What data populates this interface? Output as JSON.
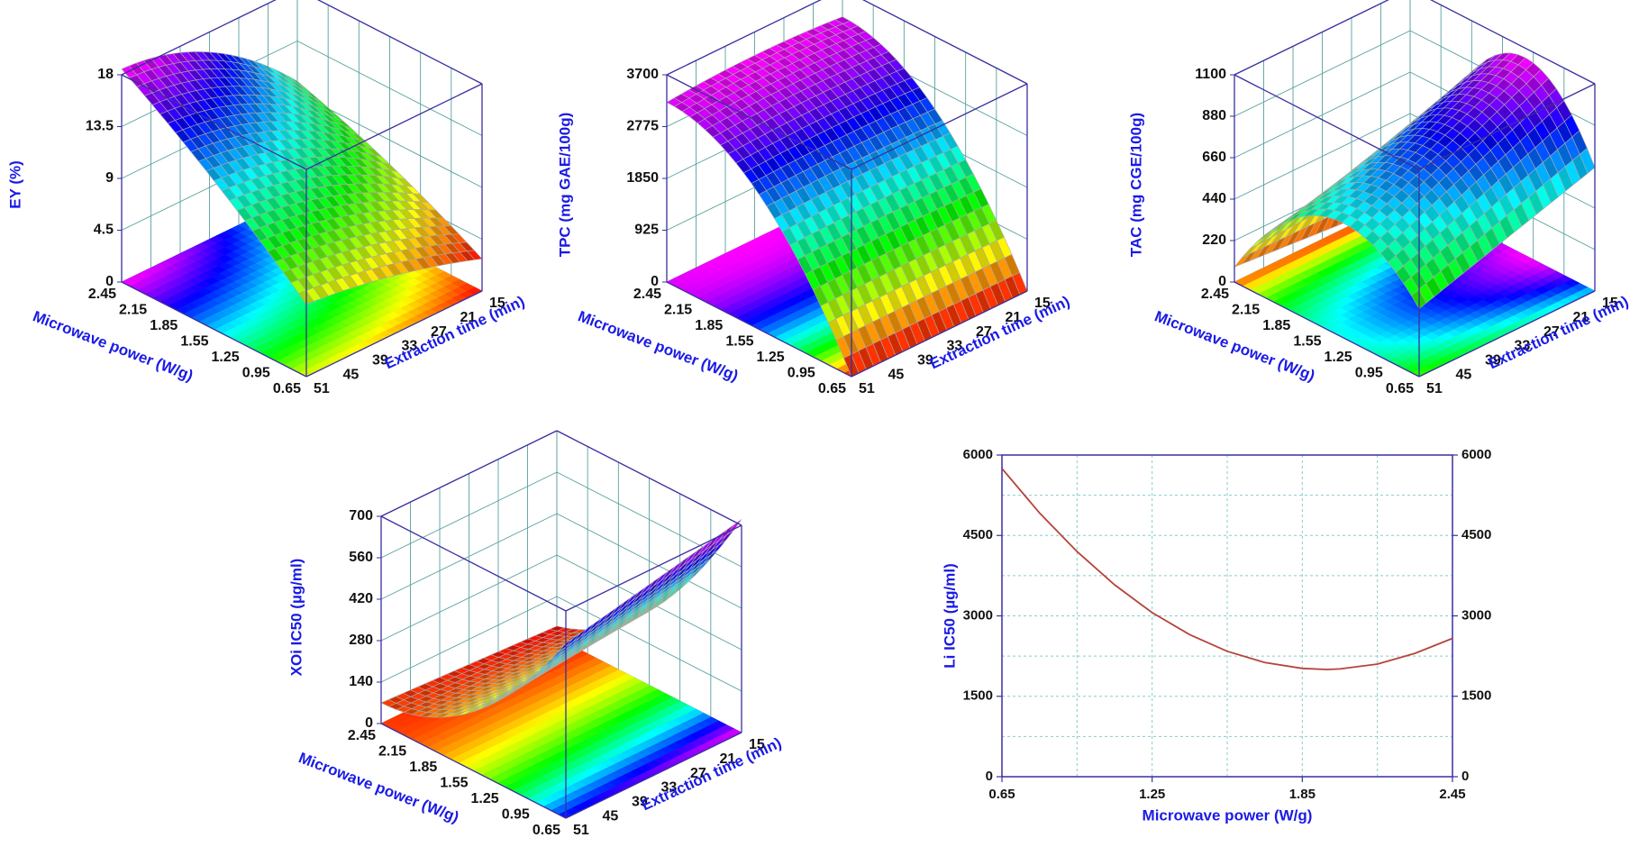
{
  "figure": {
    "colors": {
      "axis_label": "#1a1ae6",
      "tick_label": "#111111",
      "box": "#3a2ea0",
      "grid3d": "#5aa0a0",
      "mesh": "#aaaaaa",
      "grid2d": "#88cccc",
      "line": "#b5443a",
      "ticks2d": "#3a2ea0"
    }
  },
  "chart_data": [
    {
      "id": "ey",
      "type": "surface",
      "zlabel": "EY (%)",
      "xlabel": "Microwave power (W/g)",
      "ylabel": "Extraction time (min)",
      "x_ticks": [
        "2.45",
        "2.15",
        "1.85",
        "1.55",
        "1.25",
        "0.95",
        "0.65"
      ],
      "y_ticks": [
        "15",
        "21",
        "27",
        "33",
        "39",
        "45",
        "51"
      ],
      "z_ticks": [
        "0",
        "4.5",
        "9",
        "13.5",
        "18"
      ],
      "zlim": [
        0,
        18
      ],
      "surface_z_corners": {
        "power_high_time_low": 17.5,
        "power_high_time_high": 17.0,
        "power_low_time_high": 7.5,
        "power_low_time_low": 2.8
      },
      "surface_z_peak": 19.0,
      "colormap": "magenta (high) to red (low)"
    },
    {
      "id": "tpc",
      "type": "surface",
      "zlabel": "TPC (mg GAE/100g)",
      "xlabel": "Microwave power (W/g)",
      "ylabel": "Extraction time (min)",
      "x_ticks": [
        "2.45",
        "2.15",
        "1.85",
        "1.55",
        "1.25",
        "0.95",
        "0.65"
      ],
      "y_ticks": [
        "15",
        "21",
        "27",
        "33",
        "39",
        "45",
        "51"
      ],
      "z_ticks": [
        "0",
        "925",
        "1850",
        "2775",
        "3700"
      ],
      "zlim": [
        0,
        3700
      ],
      "surface_z_corners": {
        "power_high_time_low": 3150,
        "power_high_time_high": 3200,
        "power_low_time_high": 0,
        "power_low_time_low": 0
      },
      "surface_z_peak": 3600,
      "colormap": "magenta (high) to red (low)"
    },
    {
      "id": "tac",
      "type": "surface",
      "zlabel": "TAC (mg CGE/100g)",
      "xlabel": "Microwave power (W/g)",
      "ylabel": "Extraction time (min)",
      "x_ticks": [
        "2.45",
        "2.15",
        "1.85",
        "1.55",
        "1.25",
        "0.95",
        "0.65"
      ],
      "y_ticks": [
        "15",
        "21",
        "27",
        "33",
        "39",
        "45",
        "51"
      ],
      "z_ticks": [
        "0",
        "220",
        "440",
        "660",
        "880",
        "1100"
      ],
      "zlim": [
        0,
        1100
      ],
      "surface_z_corners": {
        "power_high_time_low": 0,
        "power_high_time_high": 180,
        "power_low_time_high": 0,
        "power_low_time_low": 700
      },
      "surface_z_peak": 1050,
      "colormap": "magenta (high) to red (low)"
    },
    {
      "id": "xoi",
      "type": "surface",
      "zlabel": "XOi IC50 (µg/ml)",
      "xlabel": "Microwave power (W/g)",
      "ylabel": "Extraction time (min)",
      "x_ticks": [
        "2.45",
        "2.15",
        "1.85",
        "1.55",
        "1.25",
        "0.95",
        "0.65"
      ],
      "y_ticks": [
        "15",
        "21",
        "27",
        "33",
        "39",
        "45",
        "51"
      ],
      "z_ticks": [
        "0",
        "140",
        "280",
        "420",
        "560",
        "700"
      ],
      "zlim": [
        0,
        700
      ],
      "surface_z_corners": {
        "power_high_time_low": 100,
        "power_high_time_high": 130,
        "power_low_time_high": 620,
        "power_low_time_low": 700
      },
      "surface_z_min": 40,
      "colormap": "magenta (high) to red (low)"
    },
    {
      "id": "li",
      "type": "line",
      "xlabel": "Microwave power (W/g)",
      "ylabel": "Li IC50 (µg/ml)",
      "x_ticks": [
        "0.65",
        "1.25",
        "1.85",
        "2.45"
      ],
      "y_ticks": [
        "0",
        "1500",
        "3000",
        "4500",
        "6000"
      ],
      "y2_ticks": [
        "0",
        "1500",
        "3000",
        "4500",
        "6000"
      ],
      "xlim": [
        0.65,
        2.45
      ],
      "ylim": [
        0,
        6000
      ],
      "x": [
        0.65,
        0.8,
        0.95,
        1.1,
        1.25,
        1.4,
        1.55,
        1.7,
        1.85,
        1.95,
        2.0,
        2.15,
        2.3,
        2.45
      ],
      "y": [
        5750,
        4920,
        4200,
        3580,
        3060,
        2650,
        2340,
        2130,
        2020,
        2000,
        2010,
        2100,
        2300,
        2580
      ]
    }
  ]
}
